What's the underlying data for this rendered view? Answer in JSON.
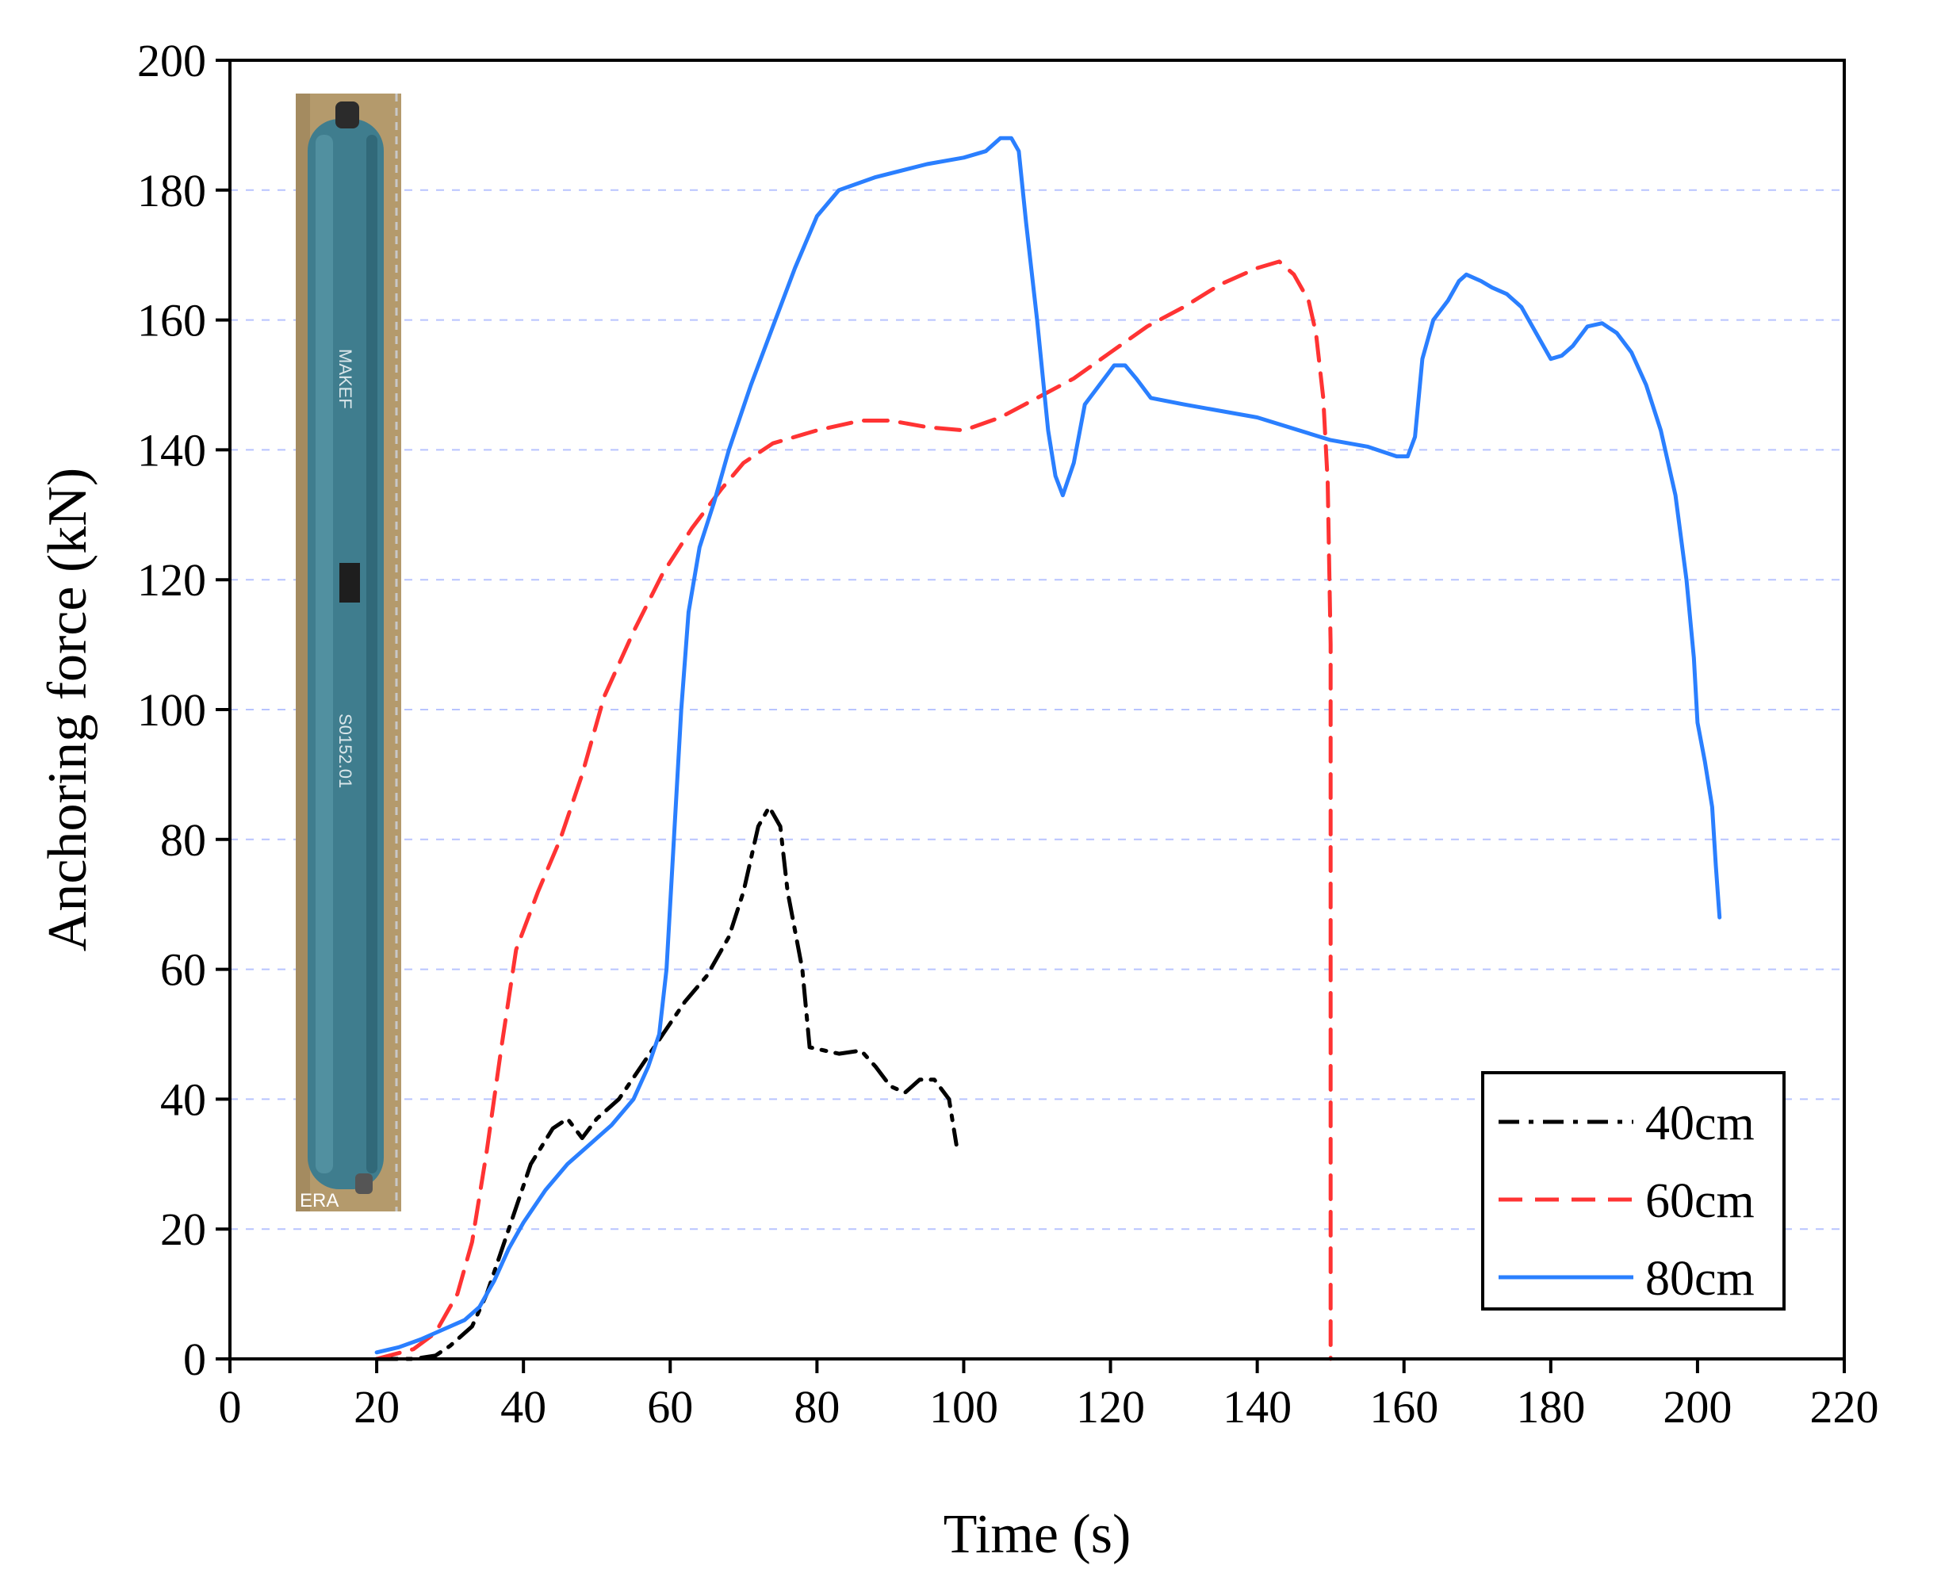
{
  "chart_data": {
    "type": "line",
    "title": "",
    "xlabel": "Time (s)",
    "ylabel": "Anchoring force (kN)",
    "xlim": [
      0,
      220
    ],
    "ylim": [
      0,
      200
    ],
    "xticks": [
      0,
      20,
      40,
      60,
      80,
      100,
      120,
      140,
      160,
      180,
      200,
      220
    ],
    "yticks": [
      0,
      20,
      40,
      60,
      80,
      100,
      120,
      140,
      160,
      180,
      200
    ],
    "grid": "horizontal dashed",
    "legend_position": "bottom-right",
    "inset_image": "anchor-rod-photo",
    "inset_text": [
      "MAKEF",
      "S0152.01",
      "ERA"
    ],
    "series": [
      {
        "name": "40cm",
        "color": "#000000",
        "dash": "dash-dot",
        "points": [
          [
            20,
            0
          ],
          [
            25,
            0
          ],
          [
            28,
            0.5
          ],
          [
            30,
            2
          ],
          [
            33,
            5
          ],
          [
            35,
            10
          ],
          [
            38,
            20
          ],
          [
            41,
            30
          ],
          [
            44,
            35.5
          ],
          [
            46,
            37
          ],
          [
            48,
            34
          ],
          [
            50,
            37
          ],
          [
            53,
            40
          ],
          [
            56,
            45
          ],
          [
            59,
            50
          ],
          [
            62,
            55
          ],
          [
            65,
            59
          ],
          [
            68,
            65
          ],
          [
            70,
            72
          ],
          [
            72,
            82
          ],
          [
            73.5,
            85
          ],
          [
            75,
            82
          ],
          [
            76,
            72
          ],
          [
            78,
            60
          ],
          [
            79,
            48
          ],
          [
            81,
            47.5
          ],
          [
            83,
            47
          ],
          [
            86,
            47.5
          ],
          [
            88,
            45
          ],
          [
            90,
            42
          ],
          [
            92,
            41
          ],
          [
            94,
            43
          ],
          [
            96,
            43
          ],
          [
            98,
            40
          ],
          [
            99,
            33
          ]
        ]
      },
      {
        "name": "60cm",
        "color": "#ff3333",
        "dash": "dashed",
        "points": [
          [
            20,
            0
          ],
          [
            25,
            1.5
          ],
          [
            28,
            4
          ],
          [
            31,
            10
          ],
          [
            33,
            18
          ],
          [
            35,
            32
          ],
          [
            37,
            48
          ],
          [
            39,
            63
          ],
          [
            42,
            72
          ],
          [
            45,
            80
          ],
          [
            48,
            90
          ],
          [
            51,
            102
          ],
          [
            55,
            112
          ],
          [
            59,
            121
          ],
          [
            63,
            128
          ],
          [
            67,
            134
          ],
          [
            70,
            138
          ],
          [
            74,
            141
          ],
          [
            80,
            143
          ],
          [
            86,
            144.5
          ],
          [
            90,
            144.5
          ],
          [
            95,
            143.5
          ],
          [
            100,
            143
          ],
          [
            105,
            145
          ],
          [
            110,
            148
          ],
          [
            115,
            151
          ],
          [
            120,
            155
          ],
          [
            125,
            159
          ],
          [
            130,
            162
          ],
          [
            135,
            165.5
          ],
          [
            140,
            168
          ],
          [
            143,
            169
          ],
          [
            145,
            167
          ],
          [
            147,
            163
          ],
          [
            148,
            158
          ],
          [
            149,
            148
          ],
          [
            149.6,
            135
          ],
          [
            150,
            110
          ],
          [
            150,
            60
          ],
          [
            150,
            0
          ]
        ]
      },
      {
        "name": "80cm",
        "color": "#2a7fff",
        "dash": "solid",
        "points": [
          [
            20,
            1
          ],
          [
            23,
            1.8
          ],
          [
            26,
            3
          ],
          [
            29,
            4.5
          ],
          [
            32,
            6
          ],
          [
            34,
            8
          ],
          [
            36,
            12
          ],
          [
            38,
            17
          ],
          [
            40,
            21
          ],
          [
            43,
            26
          ],
          [
            46,
            30
          ],
          [
            49,
            33
          ],
          [
            52,
            36
          ],
          [
            55,
            40
          ],
          [
            57,
            45
          ],
          [
            58.5,
            50
          ],
          [
            59.5,
            60
          ],
          [
            60.5,
            80
          ],
          [
            61.5,
            100
          ],
          [
            62.5,
            115
          ],
          [
            64,
            125
          ],
          [
            66,
            132
          ],
          [
            68,
            140
          ],
          [
            71,
            150
          ],
          [
            74,
            159
          ],
          [
            77,
            168
          ],
          [
            80,
            176
          ],
          [
            83,
            180
          ],
          [
            88,
            182
          ],
          [
            95,
            184
          ],
          [
            100,
            185
          ],
          [
            103,
            186
          ],
          [
            105,
            188
          ],
          [
            106.5,
            188
          ],
          [
            107.5,
            186
          ],
          [
            108.5,
            175
          ],
          [
            110,
            160
          ],
          [
            111.5,
            143
          ],
          [
            112.5,
            136
          ],
          [
            113.5,
            133
          ],
          [
            115,
            138
          ],
          [
            116.5,
            147
          ],
          [
            118.5,
            150
          ],
          [
            120.5,
            153
          ],
          [
            122,
            153
          ],
          [
            123.5,
            151
          ],
          [
            125.5,
            148
          ],
          [
            130,
            147
          ],
          [
            140,
            145
          ],
          [
            150,
            141.5
          ],
          [
            155,
            140.5
          ],
          [
            159,
            139
          ],
          [
            160.5,
            139
          ],
          [
            161.5,
            142
          ],
          [
            162.5,
            154
          ],
          [
            164,
            160
          ],
          [
            166,
            163
          ],
          [
            167.5,
            166
          ],
          [
            168.5,
            167
          ],
          [
            170.5,
            166
          ],
          [
            172,
            165
          ],
          [
            174,
            164
          ],
          [
            176,
            162
          ],
          [
            178,
            158
          ],
          [
            180,
            154
          ],
          [
            181.5,
            154.5
          ],
          [
            183,
            156
          ],
          [
            185,
            159
          ],
          [
            187,
            159.5
          ],
          [
            189,
            158
          ],
          [
            191,
            155
          ],
          [
            193,
            150
          ],
          [
            195,
            143
          ],
          [
            197,
            133
          ],
          [
            198.5,
            120
          ],
          [
            199.5,
            108
          ],
          [
            200,
            98
          ],
          [
            201,
            92
          ],
          [
            202,
            85
          ],
          [
            202.5,
            76
          ],
          [
            203,
            68
          ]
        ]
      }
    ]
  }
}
